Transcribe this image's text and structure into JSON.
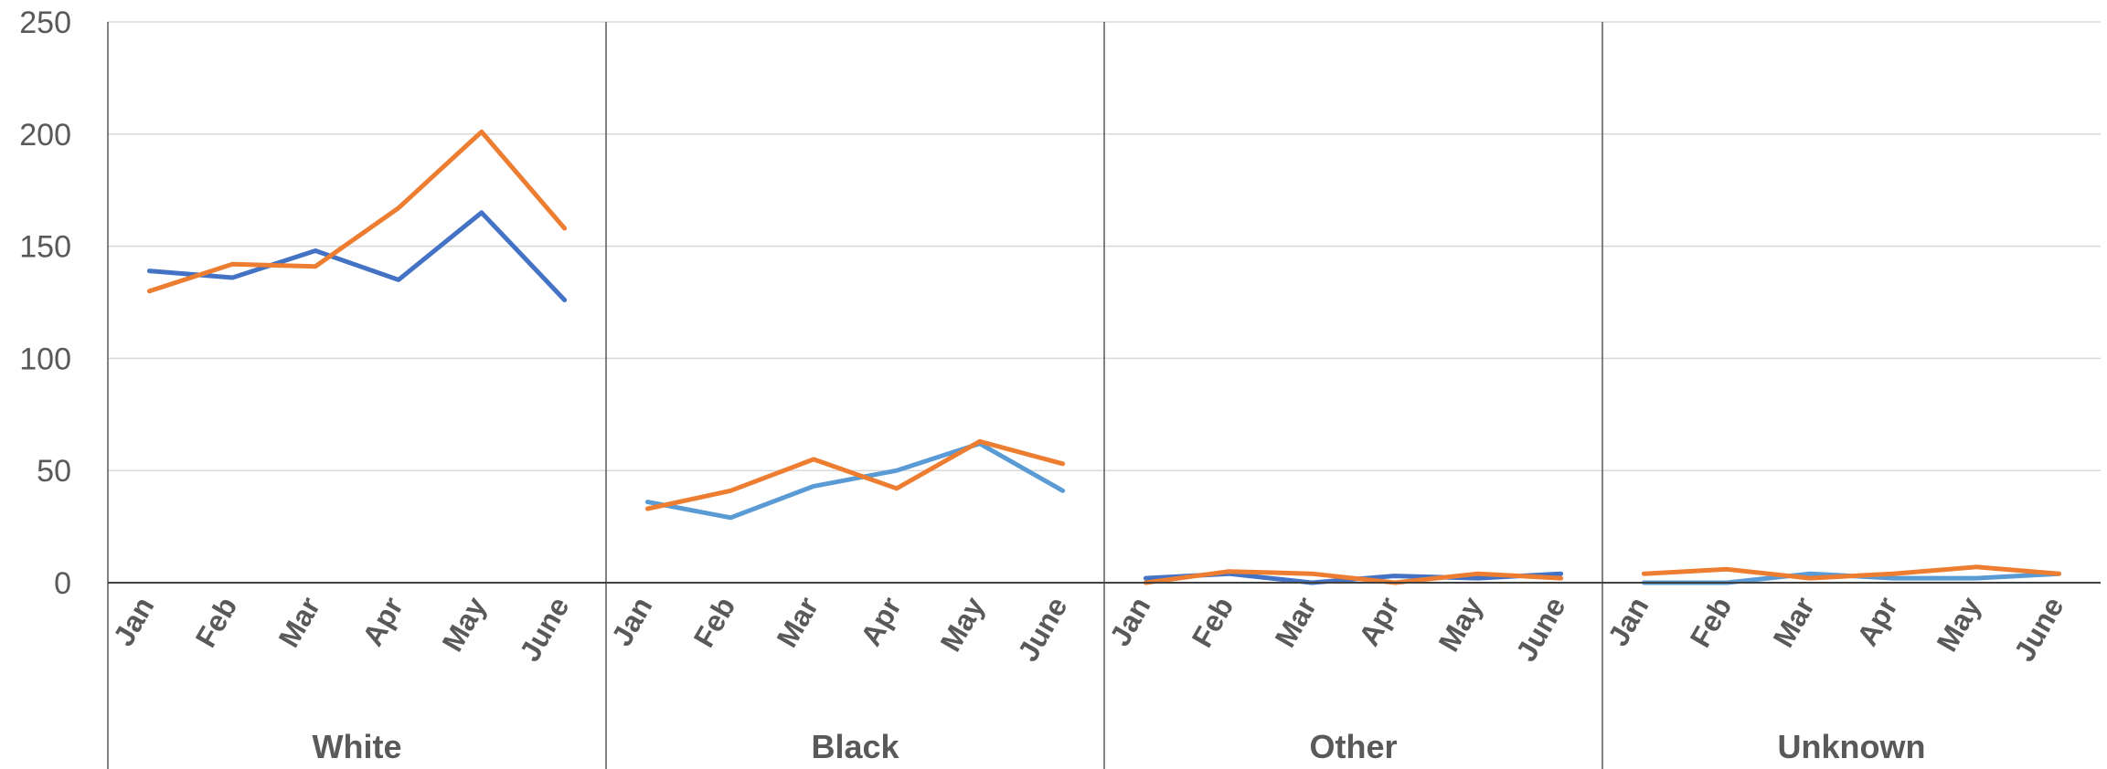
{
  "chart_data": {
    "type": "line",
    "title": "",
    "xlabel": "",
    "ylabel": "",
    "ylim": [
      0,
      250
    ],
    "yticks": [
      0,
      50,
      100,
      150,
      200,
      250
    ],
    "grid": true,
    "legend": "none",
    "categories": [
      "Jan",
      "Feb",
      "Mar",
      "Apr",
      "May",
      "June"
    ],
    "groups": [
      {
        "label": "White",
        "series": [
          {
            "color": "#4472C4",
            "values": [
              139,
              136,
              148,
              135,
              165,
              126
            ]
          },
          {
            "color": "#ED7D31",
            "values": [
              130,
              142,
              141,
              167,
              201,
              158
            ]
          }
        ]
      },
      {
        "label": "Black",
        "series": [
          {
            "color": "#5B9BD5",
            "values": [
              36,
              29,
              43,
              50,
              62,
              41
            ]
          },
          {
            "color": "#ED7D31",
            "values": [
              33,
              41,
              55,
              42,
              63,
              53
            ]
          }
        ]
      },
      {
        "label": "Other",
        "series": [
          {
            "color": "#4472C4",
            "values": [
              2,
              4,
              0,
              3,
              2,
              4
            ]
          },
          {
            "color": "#ED7D31",
            "values": [
              0,
              5,
              4,
              0,
              4,
              2
            ]
          }
        ]
      },
      {
        "label": "Unknown",
        "series": [
          {
            "color": "#5B9BD5",
            "values": [
              0,
              0,
              4,
              2,
              2,
              4
            ]
          },
          {
            "color": "#ED7D31",
            "values": [
              4,
              6,
              2,
              4,
              7,
              4
            ]
          }
        ]
      }
    ]
  }
}
